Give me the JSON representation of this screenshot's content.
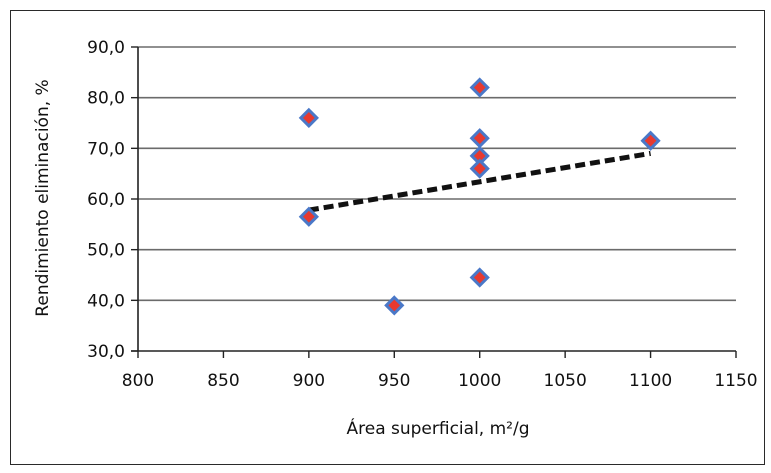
{
  "chart_data": {
    "type": "scatter",
    "xlabel": "Área superficial, m²/g",
    "ylabel": "Rendimiento eliminación, %",
    "xlim": [
      800,
      1150
    ],
    "ylim": [
      30,
      90
    ],
    "x_ticks": [
      "800",
      "850",
      "900",
      "950",
      "1000",
      "1050",
      "1100",
      "1150"
    ],
    "y_ticks": [
      "30,0",
      "40,0",
      "50,0",
      "60,0",
      "70,0",
      "80,0",
      "90,0"
    ],
    "grid": "horizontal",
    "legend": "none",
    "marker_fill": "#e8392f",
    "marker_stroke": "#4a78c8",
    "trendline_color": "#111111",
    "points": [
      {
        "x": 900,
        "y": 76.0
      },
      {
        "x": 900,
        "y": 56.5
      },
      {
        "x": 950,
        "y": 39.0
      },
      {
        "x": 1000,
        "y": 82.0
      },
      {
        "x": 1000,
        "y": 72.0
      },
      {
        "x": 1000,
        "y": 68.5
      },
      {
        "x": 1000,
        "y": 66.0
      },
      {
        "x": 1000,
        "y": 44.5
      },
      {
        "x": 1100,
        "y": 71.5
      }
    ],
    "trendline": {
      "x": [
        900,
        1100
      ],
      "y": [
        57.8,
        69.0
      ]
    }
  }
}
